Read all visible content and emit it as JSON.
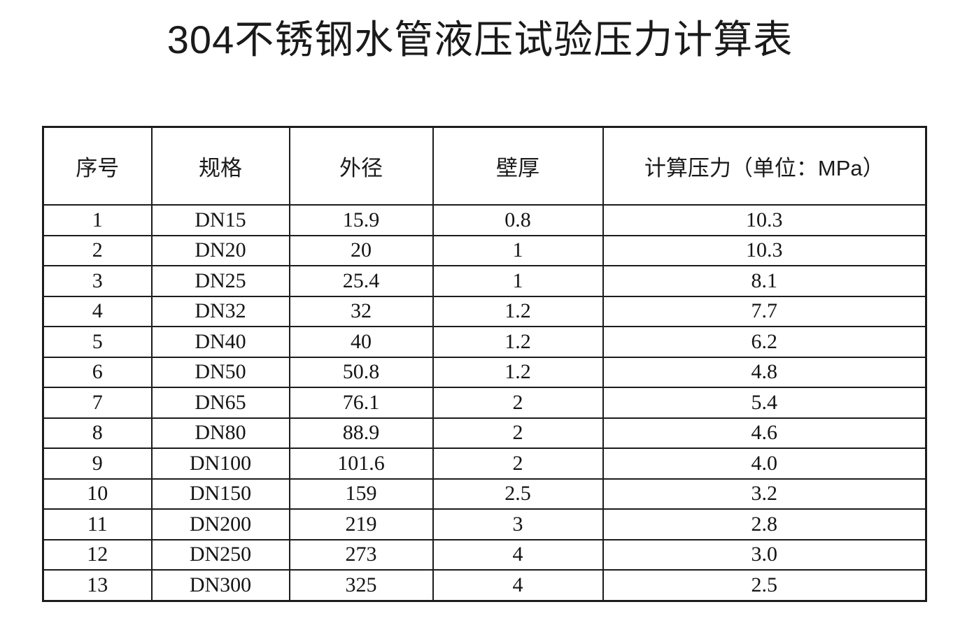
{
  "page": {
    "title": "304不锈钢水管液压试验压力计算表",
    "background_color": "#ffffff",
    "text_color": "#1a1a1a",
    "border_color": "#1c1c1c"
  },
  "table": {
    "columns": [
      "序号",
      "规格",
      "外径",
      "壁厚",
      "计算压力（单位：MPa）"
    ],
    "rows": [
      [
        "1",
        "DN15",
        "15.9",
        "0.8",
        "10.3"
      ],
      [
        "2",
        "DN20",
        "20",
        "1",
        "10.3"
      ],
      [
        "3",
        "DN25",
        "25.4",
        "1",
        "8.1"
      ],
      [
        "4",
        "DN32",
        "32",
        "1.2",
        "7.7"
      ],
      [
        "5",
        "DN40",
        "40",
        "1.2",
        "6.2"
      ],
      [
        "6",
        "DN50",
        "50.8",
        "1.2",
        "4.8"
      ],
      [
        "7",
        "DN65",
        "76.1",
        "2",
        "5.4"
      ],
      [
        "8",
        "DN80",
        "88.9",
        "2",
        "4.6"
      ],
      [
        "9",
        "DN100",
        "101.6",
        "2",
        "4.0"
      ],
      [
        "10",
        "DN150",
        "159",
        "2.5",
        "3.2"
      ],
      [
        "11",
        "DN200",
        "219",
        "3",
        "2.8"
      ],
      [
        "12",
        "DN250",
        "273",
        "4",
        "3.0"
      ],
      [
        "13",
        "DN300",
        "325",
        "4",
        "2.5"
      ]
    ]
  }
}
